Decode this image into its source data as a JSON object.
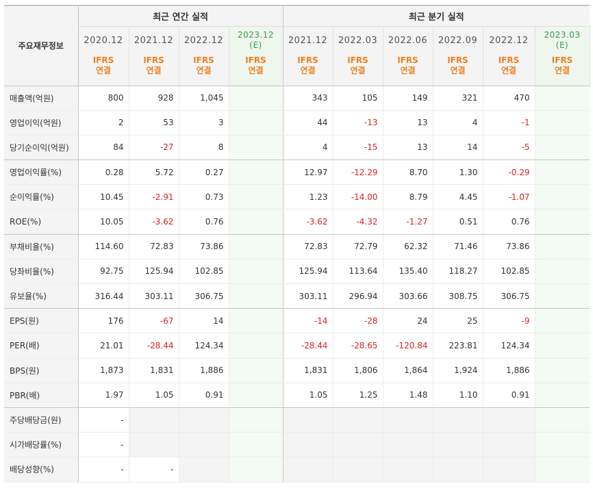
{
  "header": {
    "corner_label": "주요재무정보",
    "annual_group_label": "최근 연간 실적",
    "quarter_group_label": "최근 분기 실적"
  },
  "periods": [
    {
      "label": "2020.12",
      "estimate": "",
      "basis_top": "IFRS",
      "basis_bottom": "연결"
    },
    {
      "label": "2021.12",
      "estimate": "",
      "basis_top": "IFRS",
      "basis_bottom": "연결"
    },
    {
      "label": "2022.12",
      "estimate": "",
      "basis_top": "IFRS",
      "basis_bottom": "연결"
    },
    {
      "label": "2023.12",
      "estimate": "(E)",
      "basis_top": "IFRS",
      "basis_bottom": "연결"
    },
    {
      "label": "2021.12",
      "estimate": "",
      "basis_top": "IFRS",
      "basis_bottom": "연결"
    },
    {
      "label": "2022.03",
      "estimate": "",
      "basis_top": "IFRS",
      "basis_bottom": "연결"
    },
    {
      "label": "2022.06",
      "estimate": "",
      "basis_top": "IFRS",
      "basis_bottom": "연결"
    },
    {
      "label": "2022.09",
      "estimate": "",
      "basis_top": "IFRS",
      "basis_bottom": "연결"
    },
    {
      "label": "2022.12",
      "estimate": "",
      "basis_top": "IFRS",
      "basis_bottom": "연결"
    },
    {
      "label": "2023.03",
      "estimate": "(E)",
      "basis_top": "IFRS",
      "basis_bottom": "연결"
    }
  ],
  "rows": [
    {
      "label": "매출액(억원)",
      "values": [
        "800",
        "928",
        "1,045",
        "",
        "343",
        "105",
        "149",
        "321",
        "470",
        ""
      ]
    },
    {
      "label": "영업이익(억원)",
      "values": [
        "2",
        "53",
        "3",
        "",
        "44",
        "-13",
        "13",
        "4",
        "-1",
        ""
      ]
    },
    {
      "label": "당기순이익(억원)",
      "values": [
        "84",
        "-27",
        "8",
        "",
        "4",
        "-15",
        "13",
        "14",
        "-5",
        ""
      ]
    },
    {
      "label": "영업이익률(%)",
      "values": [
        "0.28",
        "5.72",
        "0.27",
        "",
        "12.97",
        "-12.29",
        "8.70",
        "1.30",
        "-0.29",
        ""
      ]
    },
    {
      "label": "순이익률(%)",
      "values": [
        "10.45",
        "-2.91",
        "0.73",
        "",
        "1.23",
        "-14.00",
        "8.79",
        "4.45",
        "-1.07",
        ""
      ]
    },
    {
      "label": "ROE(%)",
      "values": [
        "10.05",
        "-3.62",
        "0.76",
        "",
        "-3.62",
        "-4.32",
        "-1.27",
        "0.51",
        "0.76",
        ""
      ]
    },
    {
      "label": "부채비율(%)",
      "values": [
        "114.60",
        "72.83",
        "73.86",
        "",
        "72.83",
        "72.79",
        "62.32",
        "71.46",
        "73.86",
        ""
      ]
    },
    {
      "label": "당좌비율(%)",
      "values": [
        "92.75",
        "125.94",
        "102.85",
        "",
        "125.94",
        "113.64",
        "135.40",
        "118.27",
        "102.85",
        ""
      ]
    },
    {
      "label": "유보율(%)",
      "values": [
        "316.44",
        "303.11",
        "306.75",
        "",
        "303.11",
        "296.94",
        "303.66",
        "308.75",
        "306.75",
        ""
      ]
    },
    {
      "label": "EPS(원)",
      "values": [
        "176",
        "-67",
        "14",
        "",
        "-14",
        "-28",
        "24",
        "25",
        "-9",
        ""
      ]
    },
    {
      "label": "PER(배)",
      "values": [
        "21.01",
        "-28.44",
        "124.34",
        "",
        "-28.44",
        "-28.65",
        "-120.84",
        "223.81",
        "124.34",
        ""
      ]
    },
    {
      "label": "BPS(원)",
      "values": [
        "1,873",
        "1,831",
        "1,886",
        "",
        "1,831",
        "1,806",
        "1,864",
        "1,924",
        "1,886",
        ""
      ]
    },
    {
      "label": "PBR(배)",
      "values": [
        "1.97",
        "1.05",
        "0.91",
        "",
        "1.05",
        "1.25",
        "1.48",
        "1.10",
        "0.91",
        ""
      ]
    },
    {
      "label": "주당배당금(원)",
      "values": [
        "-",
        "",
        "",
        "",
        "",
        "",
        "",
        "",
        "",
        ""
      ]
    },
    {
      "label": "시가배당률(%)",
      "values": [
        "-",
        "",
        "",
        "",
        "",
        "",
        "",
        "",
        "",
        ""
      ]
    },
    {
      "label": "배당성향(%)",
      "values": [
        "-",
        "-",
        "",
        "",
        "",
        "",
        "",
        "",
        "",
        ""
      ]
    }
  ],
  "colors": {
    "negative": "#e02020",
    "basis_accent": "#f07f1c",
    "estimate": "#3d9c4a"
  }
}
